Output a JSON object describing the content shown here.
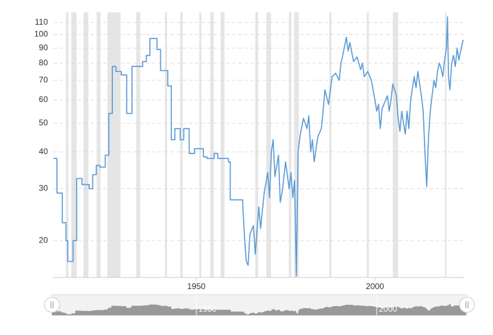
{
  "chart_data": {
    "type": "line",
    "log_y": true,
    "grid": true,
    "color": "#5b9bd5",
    "shade_color": "#e5e5e5",
    "xlim": [
      1910,
      2025
    ],
    "xticks": [
      1950,
      2000
    ],
    "ylim": [
      15,
      119
    ],
    "yticks": [
      20,
      30,
      40,
      50,
      60,
      70,
      80,
      90,
      100,
      110
    ],
    "shaded_ranges": [
      [
        1913.5,
        1914.2
      ],
      [
        1915.0,
        1916.5
      ],
      [
        1918.4,
        1919.8
      ],
      [
        1922.1,
        1923.2
      ],
      [
        1925.1,
        1928.8
      ],
      [
        1933.2,
        1934.3
      ],
      [
        1941.2,
        1941.8
      ],
      [
        1945.5,
        1946.2
      ],
      [
        1950.8,
        1951.4
      ],
      [
        1953.9,
        1954.9
      ],
      [
        1956.8,
        1957.9
      ],
      [
        1966.5,
        1967.3
      ],
      [
        1969.6,
        1970.9
      ],
      [
        1975.9,
        1976.6
      ],
      [
        1977.4,
        1978.7
      ],
      [
        1987.2,
        1987.8
      ],
      [
        1997.7,
        1998.3
      ],
      [
        2005.0,
        2006.5
      ],
      [
        2019.6,
        2020.0
      ]
    ],
    "x": [
      1910,
      1911,
      1911,
      1912.5,
      1912.5,
      1913.5,
      1913.5,
      1914,
      1914,
      1915.5,
      1915.5,
      1916.5,
      1916.5,
      1918,
      1918,
      1920,
      1920,
      1921,
      1921,
      1922,
      1922,
      1923,
      1923,
      1924.5,
      1924.5,
      1925.5,
      1925.5,
      1926.5,
      1926.5,
      1927.5,
      1927.5,
      1929,
      1929,
      1930.5,
      1930.5,
      1932,
      1932,
      1935,
      1935,
      1936,
      1936,
      1937,
      1937,
      1939,
      1939,
      1940,
      1940,
      1942,
      1942,
      1943,
      1943,
      1944,
      1944,
      1945.5,
      1945.5,
      1946.5,
      1946.5,
      1948,
      1948,
      1949.5,
      1949.5,
      1952,
      1952,
      1953,
      1953,
      1955,
      1955,
      1956,
      1956,
      1959,
      1959,
      1959.5,
      1959.5,
      1963,
      1963,
      1963.5,
      1964,
      1964.5,
      1965,
      1966,
      1966.5,
      1967.5,
      1968,
      1969,
      1970,
      1970.5,
      1971,
      1971.5,
      1972,
      1973,
      1973.5,
      1974,
      1975,
      1976,
      1976.5,
      1977,
      1977.5,
      1978,
      1978.5,
      1979,
      1980,
      1981,
      1981.5,
      1982,
      1982.5,
      1983,
      1984,
      1985,
      1985.5,
      1986,
      1987,
      1988,
      1989,
      1990,
      1990.5,
      1991,
      1992,
      1992.5,
      1993,
      1994,
      1995,
      1996,
      1996.5,
      1997,
      1998,
      1999,
      2000,
      2000.5,
      2001,
      2001.5,
      2002,
      2003,
      2003.5,
      2004,
      2004.5,
      2005,
      2006,
      2006.5,
      2007,
      2007.5,
      2008,
      2008.5,
      2009,
      2009.5,
      2010,
      2011,
      2011.5,
      2012,
      2013,
      2013.5,
      2014,
      2014.5,
      2015,
      2015.5,
      2016,
      2016.5,
      2017,
      2017.5,
      2018,
      2018.5,
      2019,
      2019.5,
      2020,
      2020.3,
      2020.6,
      2021,
      2021.5,
      2022,
      2022.5,
      2023,
      2023.5,
      2024,
      2024.7
    ],
    "values": [
      38,
      38,
      29,
      29,
      23,
      23,
      20,
      20,
      17,
      17,
      20,
      20,
      32.5,
      32.5,
      31,
      31,
      30,
      30,
      33.5,
      33.5,
      36,
      36,
      35.5,
      35.5,
      39,
      39,
      54,
      54,
      78,
      78,
      75,
      75,
      73,
      73,
      54,
      54,
      78,
      78,
      81,
      81,
      85,
      85,
      97,
      97,
      89,
      89,
      75.5,
      75.5,
      67,
      67,
      44,
      44,
      48,
      48,
      44,
      44,
      48,
      48,
      39.5,
      39.5,
      41,
      41,
      38.5,
      38.5,
      38,
      38,
      39.5,
      39.5,
      38,
      38,
      37,
      37,
      27.5,
      27.5,
      26.5,
      20.5,
      17,
      16.5,
      21,
      22.5,
      18,
      26,
      22,
      29,
      34,
      28,
      40,
      44,
      33,
      39,
      27,
      29,
      37,
      30,
      34,
      28,
      32,
      15.2,
      40,
      45,
      52,
      48,
      53,
      40,
      44,
      37,
      45,
      48,
      55,
      65,
      58,
      72,
      74,
      70,
      80,
      85,
      98,
      88,
      94,
      81,
      84,
      76,
      80,
      72,
      75,
      70,
      60,
      55,
      58,
      48,
      56,
      60,
      62,
      55,
      60,
      68,
      62,
      52,
      47,
      55,
      50,
      46,
      55,
      48,
      60,
      72,
      66,
      75,
      62,
      55,
      40,
      30.5,
      45,
      55,
      62,
      70,
      66,
      75,
      80,
      77,
      72,
      82,
      90,
      115,
      72,
      65,
      80,
      85,
      78,
      90,
      82,
      88,
      96
    ]
  }
}
